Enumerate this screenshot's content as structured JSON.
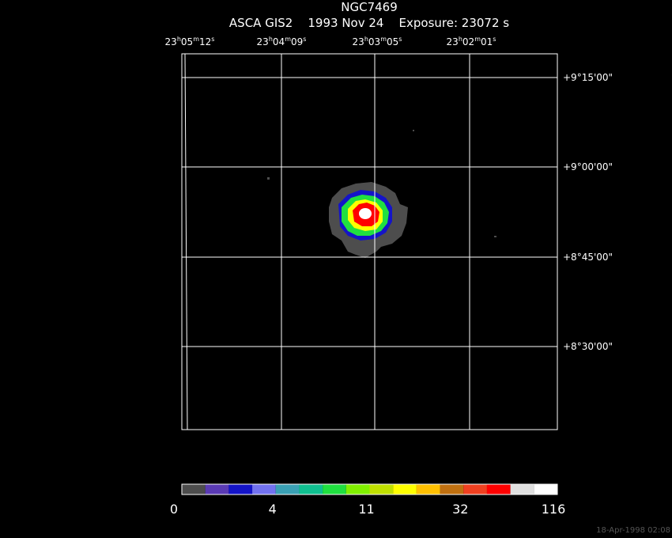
{
  "header": {
    "title": "NGC7469",
    "subtitle": "ASCA GIS2    1993 Nov 24    Exposure: 23072 s"
  },
  "ra_labels": [
    [
      "23",
      "h",
      "05",
      "m",
      "12",
      "s"
    ],
    [
      "23",
      "h",
      "04",
      "m",
      "09",
      "s"
    ],
    [
      "23",
      "h",
      "03",
      "m",
      "05",
      "s"
    ],
    [
      "23",
      "h",
      "02",
      "m",
      "01",
      "s"
    ]
  ],
  "dec_labels": [
    "+9°15'00\"",
    "+9°00'00\"",
    "+8°45'00\"",
    "+8°30'00\""
  ],
  "colorbar": {
    "colors": [
      "#4d4d4d",
      "#5a3ab4",
      "#1414c8",
      "#7272f0",
      "#3aa0b4",
      "#10c090",
      "#20e040",
      "#80f000",
      "#c0e000",
      "#ffff00",
      "#ffc000",
      "#c07010",
      "#f04020",
      "#ff0000",
      "#e0e0e0",
      "#ffffff"
    ],
    "labels": [
      "0",
      "4",
      "11",
      "32",
      "116"
    ]
  },
  "footer": "18-Apr-1998 02:08"
}
